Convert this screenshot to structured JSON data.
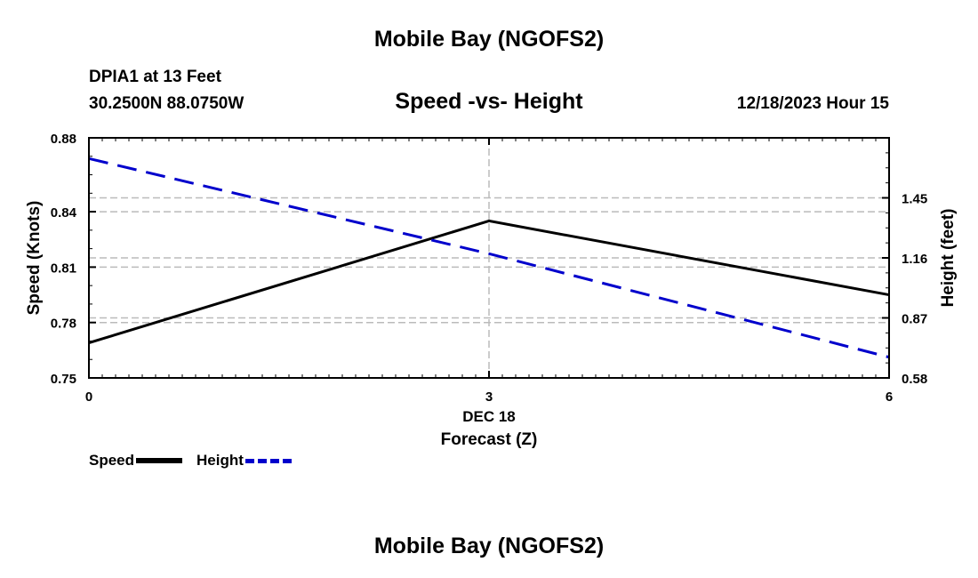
{
  "header": {
    "title": "Mobile Bay (NGOFS2)",
    "station": "DPIA1 at 13 Feet",
    "coordinates": "30.2500N  88.0750W",
    "subtitle": "Speed -vs- Height",
    "datetime": "12/18/2023 Hour 15"
  },
  "footer": {
    "title": "Mobile Bay (NGOFS2)"
  },
  "legend": {
    "speed_label": "Speed",
    "height_label": "Height"
  },
  "colors": {
    "speed": "#000000",
    "height": "#0000cc",
    "grid": "#bbbbbb"
  },
  "chart_data": {
    "type": "line",
    "title": "Speed -vs- Height",
    "xlabel": "Forecast (Z)",
    "x_date_label": "DEC 18",
    "ylabel": "Speed (Knots)",
    "y2label": "Height (feet)",
    "x": [
      0,
      3,
      6
    ],
    "xlim": [
      0,
      6
    ],
    "x_ticks": [
      "0",
      "3",
      "6"
    ],
    "ylim": [
      0.75,
      0.88
    ],
    "y_ticks": [
      "0.75",
      "0.78",
      "0.81",
      "0.84",
      "0.88"
    ],
    "y2lim": [
      0.58,
      1.74
    ],
    "y2_ticks": [
      "0.58",
      "0.87",
      "1.16",
      "1.45"
    ],
    "series": [
      {
        "name": "Speed",
        "axis": "left",
        "style": "solid",
        "values": [
          0.769,
          0.835,
          0.795
        ]
      },
      {
        "name": "Height",
        "axis": "right",
        "style": "dashed",
        "values": [
          1.64,
          1.18,
          0.68
        ]
      }
    ]
  }
}
